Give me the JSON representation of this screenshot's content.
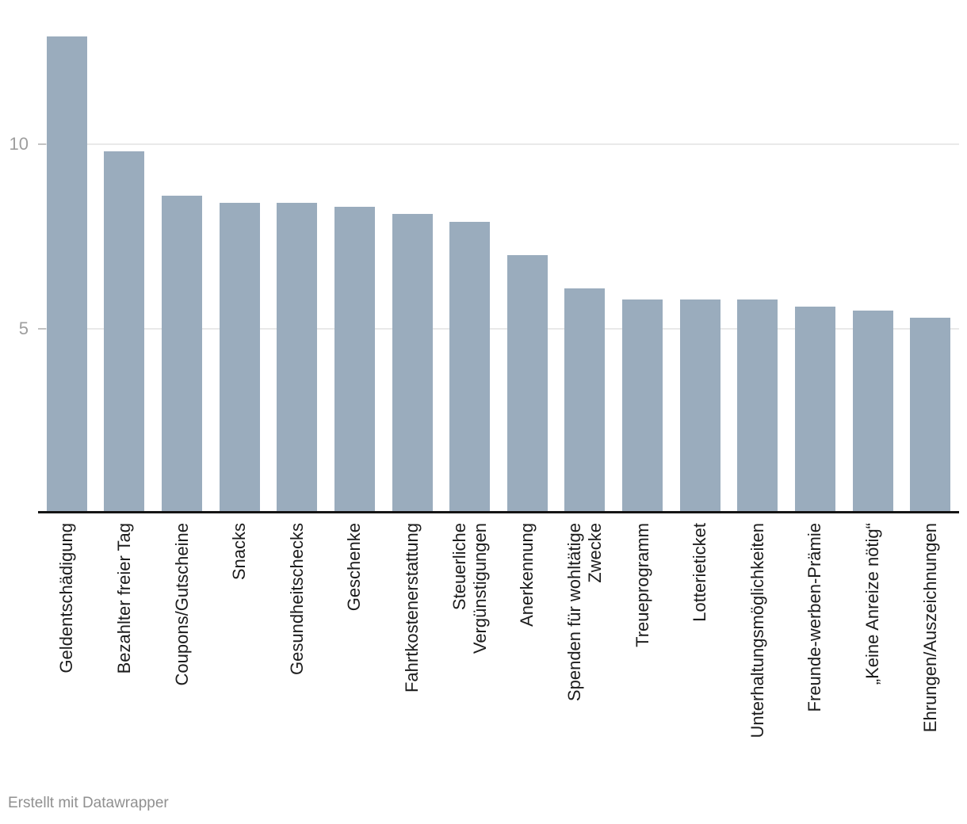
{
  "chart_data": {
    "type": "bar",
    "categories": [
      "Geldentschädigung",
      "Bezahlter freier Tag",
      "Coupons/Gutscheine",
      "Snacks",
      "Gesundheitschecks",
      "Geschenke",
      "Fahrtkostenerstattung",
      "Steuerliche\nVergünstigungen",
      "Anerkennung",
      "Spenden für wohltätige\nZwecke",
      "Treueprogramm",
      "Lotterieticket",
      "Unterhaltungsmöglichkeiten",
      "Freunde-werben-Prämie",
      "„Keine Anreize nötig“",
      "Ehrungen/Auszeichnungen"
    ],
    "values": [
      12.9,
      9.8,
      8.6,
      8.4,
      8.4,
      8.3,
      8.1,
      7.9,
      7.0,
      6.1,
      5.8,
      5.8,
      5.8,
      5.6,
      5.5,
      5.3
    ],
    "xlabel": "",
    "ylabel": "",
    "y_ticks": [
      5,
      10
    ],
    "ylim": [
      0,
      13
    ],
    "grid": "horizontal",
    "legend": "none",
    "bar_color": "#9aacbd"
  },
  "footer": {
    "attribution": "Erstellt mit Datawrapper"
  },
  "colors": {
    "background": "#ffffff",
    "bar": "#9aacbd",
    "axis_line": "#151515",
    "gridline": "#e9e9e9",
    "tick": "#c2c2c2",
    "tick_label": "#9e9e9e",
    "category_label": "#1c1c1c",
    "footer_text": "#909090"
  }
}
